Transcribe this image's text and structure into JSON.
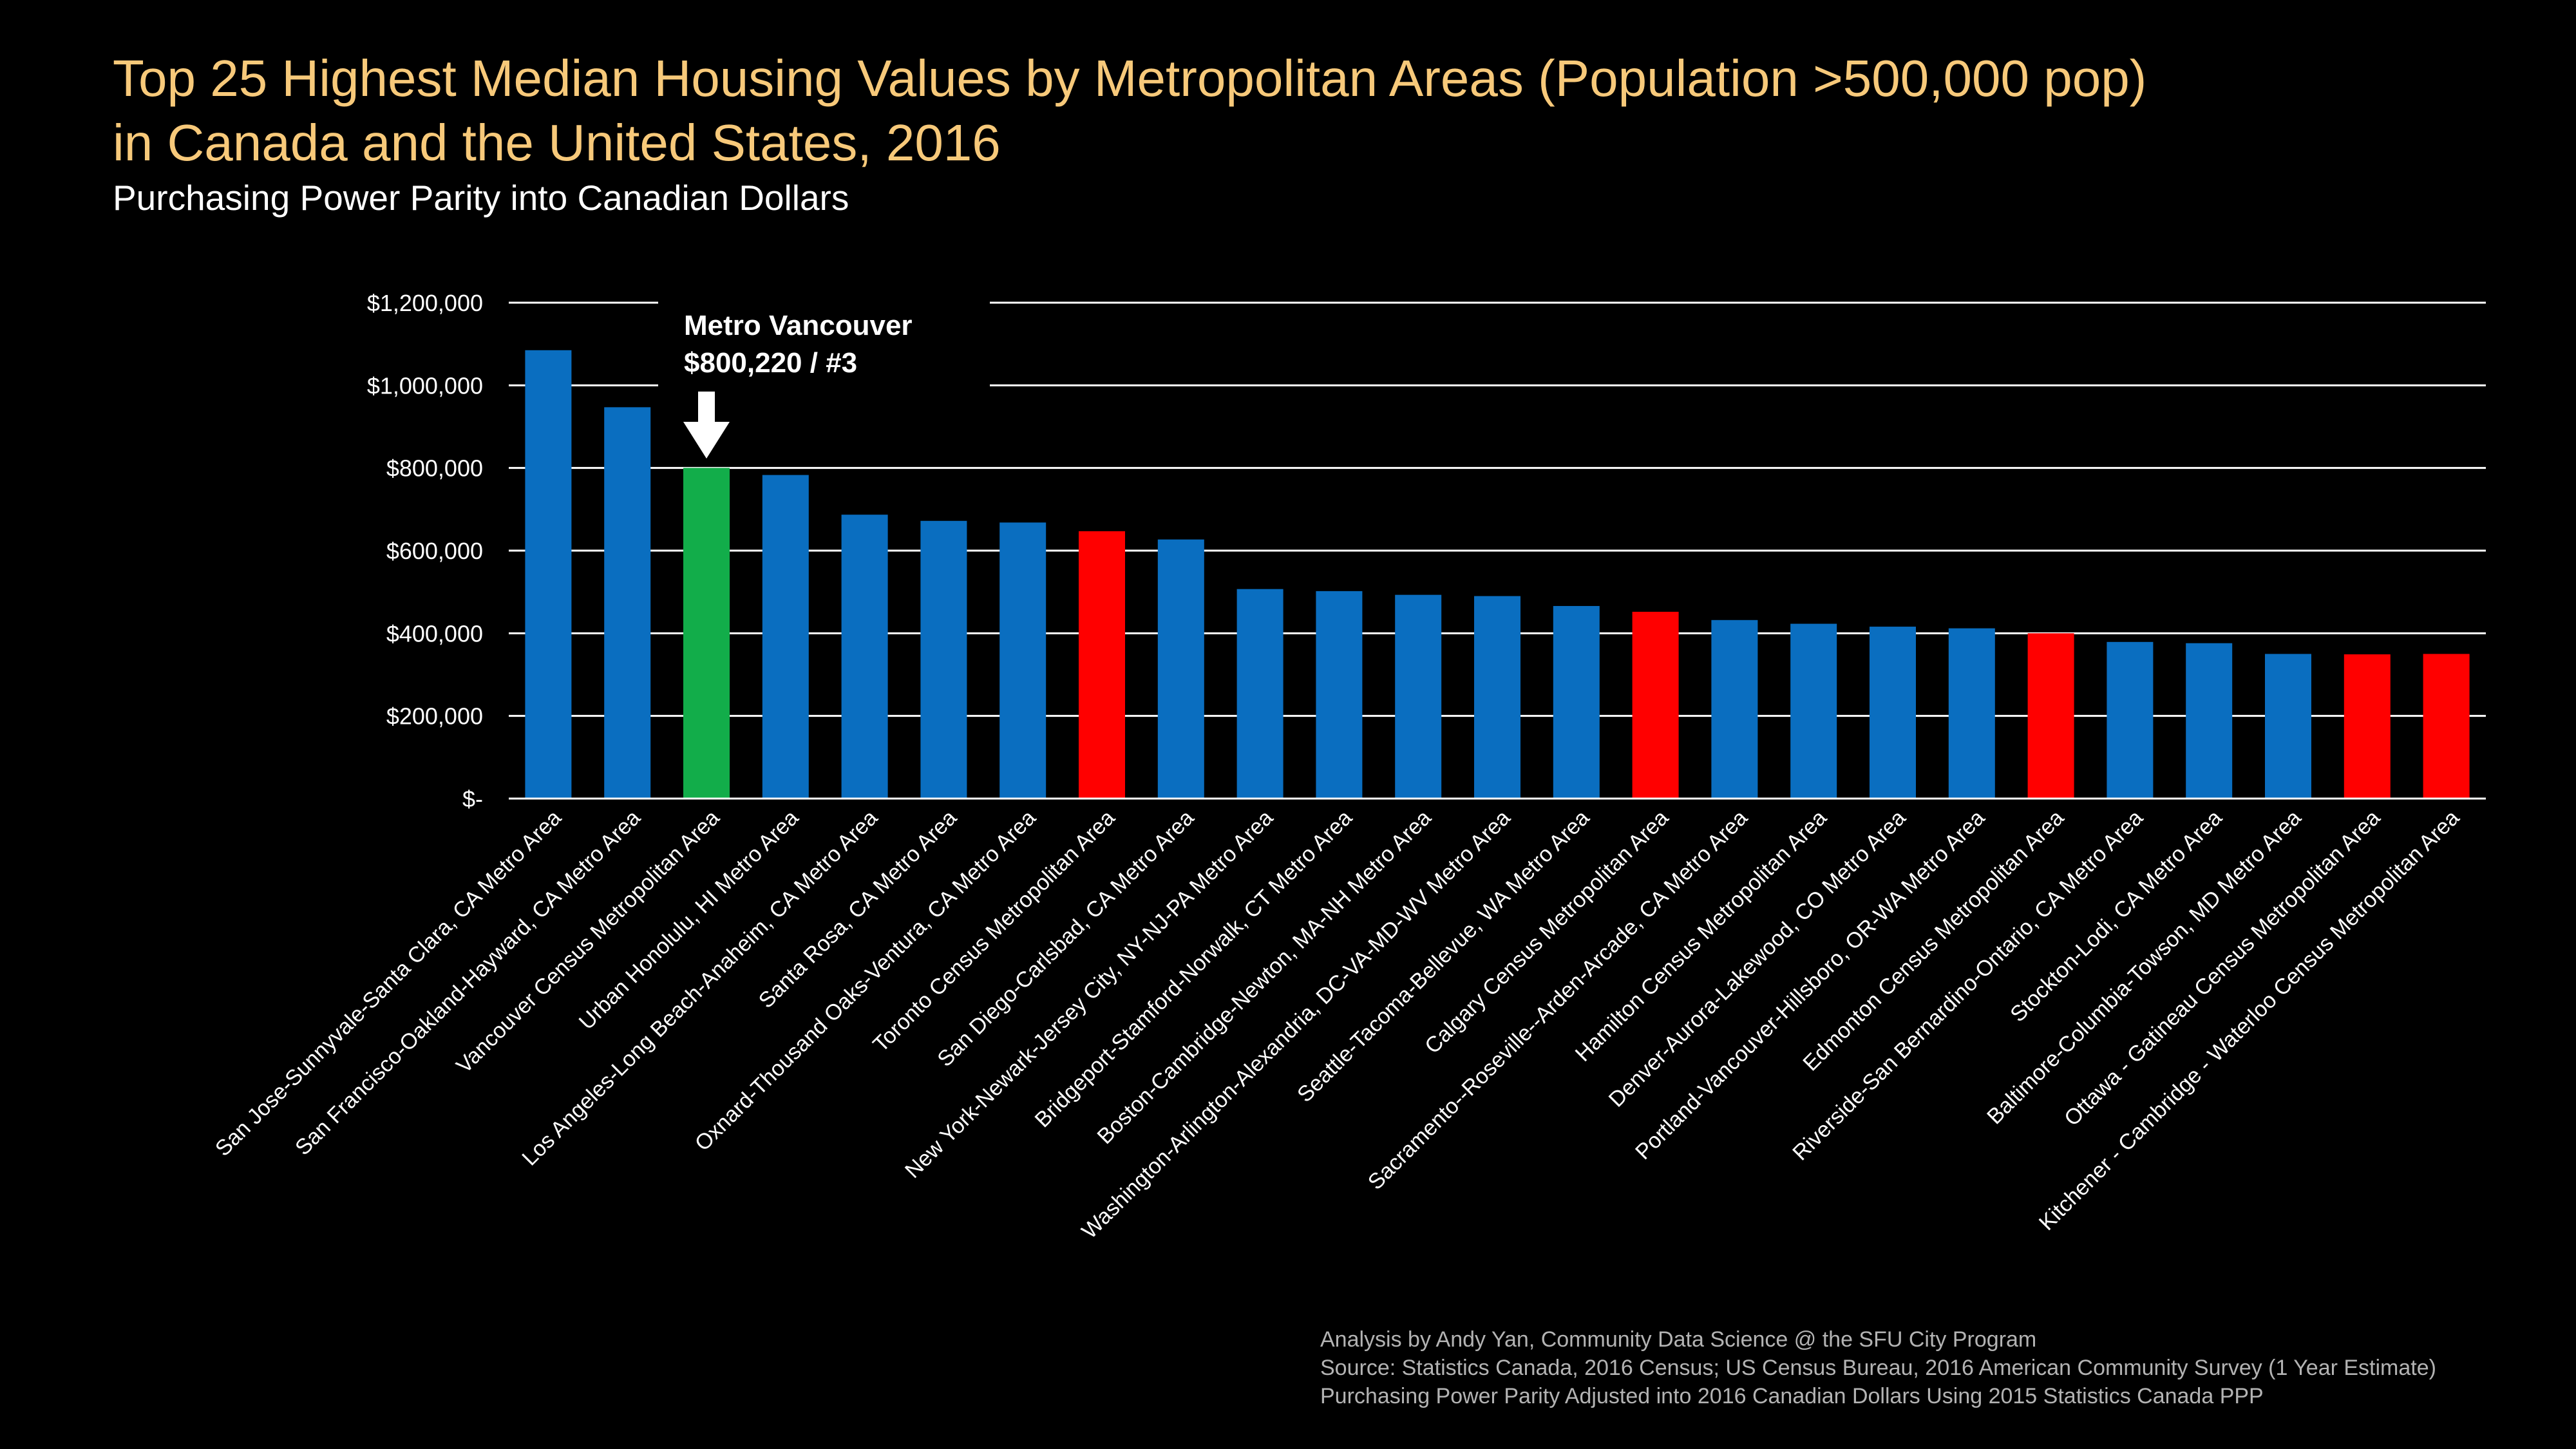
{
  "title_line1": "Top 25 Highest Median Housing Values by Metropolitan Areas (Population >500,000 pop)",
  "title_line2": "in Canada and the United States, 2016",
  "subtitle": "Purchasing Power Parity into Canadian Dollars",
  "colors": {
    "background": "#000000",
    "title": "#f7c97a",
    "us_bar": "#0a6ec0",
    "canada_bar": "#ff0000",
    "highlight_bar": "#12ad4a",
    "grid": "#ffffff",
    "axis_text": "#ffffff",
    "footnote": "#b3b3b3"
  },
  "annotation": {
    "line1": "Metro Vancouver",
    "line2": "$800,220 / #3",
    "target_index": 2,
    "icon": "down-arrow-icon"
  },
  "footnotes": [
    "Analysis by Andy Yan, Community Data Science @ the SFU City Program",
    "Source: Statistics Canada, 2016 Census; US Census Bureau, 2016 American Community Survey (1 Year Estimate)",
    "Purchasing Power Parity Adjusted into 2016 Canadian Dollars Using 2015 Statistics Canada PPP"
  ],
  "chart_data": {
    "type": "bar",
    "title": "Top 25 Highest Median Housing Values by Metropolitan Areas (Population >500,000 pop) in Canada and the United States, 2016",
    "subtitle": "Purchasing Power Parity into Canadian Dollars",
    "xlabel": "",
    "ylabel": "",
    "ylim": [
      0,
      1200000
    ],
    "yticks": [
      0,
      200000,
      400000,
      600000,
      800000,
      1000000,
      1200000
    ],
    "ytick_labels": [
      "$-",
      "$200,000",
      "$400,000",
      "$600,000",
      "$800,000",
      "$1,000,000",
      "$1,200,000"
    ],
    "grid": true,
    "legend": "none",
    "categories": [
      "San Jose-Sunnyvale-Santa Clara, CA Metro Area",
      "San Francisco-Oakland-Hayward, CA Metro Area",
      "Vancouver Census Metropolitan Area",
      "Urban Honolulu, HI Metro Area",
      "Los Angeles-Long Beach-Anaheim, CA Metro Area",
      "Santa Rosa, CA Metro Area",
      "Oxnard-Thousand Oaks-Ventura, CA Metro Area",
      "Toronto Census Metropolitan Area",
      "San Diego-Carlsbad, CA Metro Area",
      "New York-Newark-Jersey City, NY-NJ-PA Metro Area",
      "Bridgeport-Stamford-Norwalk, CT Metro Area",
      "Boston-Cambridge-Newton, MA-NH Metro Area",
      "Washington-Arlington-Alexandria, DC-VA-MD-WV Metro Area",
      "Seattle-Tacoma-Bellevue, WA Metro Area",
      "Calgary Census Metropolitan Area",
      "Sacramento--Roseville--Arden-Arcade, CA Metro Area",
      "Hamilton Census Metropolitan Area",
      "Denver-Aurora-Lakewood, CO Metro Area",
      "Portland-Vancouver-Hillsboro, OR-WA Metro Area",
      "Edmonton Census Metropolitan Area",
      "Riverside-San Bernardino-Ontario, CA Metro Area",
      "Stockton-Lodi, CA Metro Area",
      "Baltimore-Columbia-Towson, MD Metro Area",
      "Ottawa - Gatineau Census Metropolitan Area",
      "Kitchener - Cambridge - Waterloo Census Metropolitan Area"
    ],
    "values": [
      1085000,
      947000,
      800220,
      783000,
      687000,
      672000,
      668000,
      647000,
      627000,
      507000,
      502000,
      493000,
      490000,
      466000,
      452000,
      432000,
      423000,
      416000,
      412000,
      400000,
      379000,
      376000,
      350000,
      349000,
      350000
    ],
    "bar_colors": [
      "us",
      "us",
      "highlight",
      "us",
      "us",
      "us",
      "us",
      "canada",
      "us",
      "us",
      "us",
      "us",
      "us",
      "us",
      "canada",
      "us",
      "us",
      "us",
      "us",
      "canada",
      "us",
      "us",
      "us",
      "canada",
      "canada"
    ]
  }
}
